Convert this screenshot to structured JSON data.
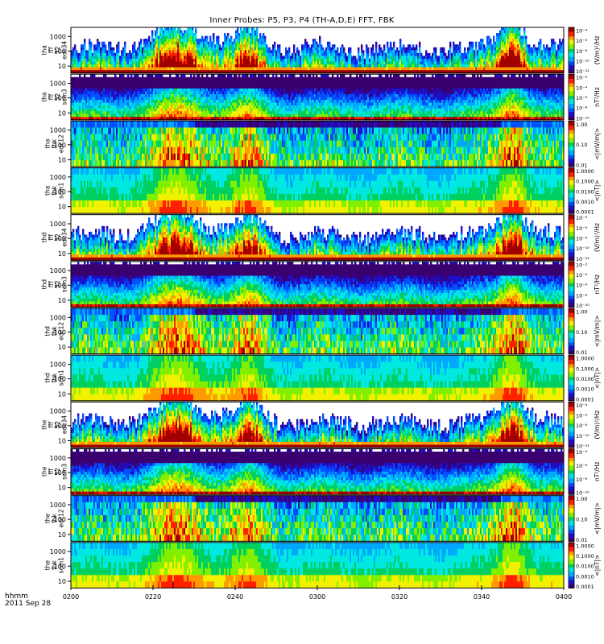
{
  "title": "Inner Probes: P5, P3, P4 (TH-A,D,E) FFT, FBK",
  "footer": {
    "units": "hhmm",
    "date": "2011 Sep 28"
  },
  "chart_data": {
    "type": "heatmap",
    "x_ticks": [
      "0200",
      "0220",
      "0240",
      "0300",
      "0320",
      "0340",
      "0400"
    ],
    "x_range": [
      "02:00",
      "04:00"
    ],
    "y_scale": "log",
    "y_ticks": [
      "10",
      "100",
      "1000"
    ],
    "panels": [
      {
        "probe": "tha",
        "label": [
          "tha",
          "fff",
          "32",
          "edc34"
        ],
        "kind": "fff_e",
        "zlabel": "(V/m)²/Hz",
        "zticks": [
          "10⁻⁴",
          "10⁻⁶",
          "10⁻⁸",
          "10⁻¹⁰",
          "10⁻¹²"
        ]
      },
      {
        "probe": "tha",
        "label": [
          "tha",
          "fff",
          "32",
          "scm3"
        ],
        "kind": "fff_b",
        "zlabel": "nT²/Hz",
        "zticks": [
          "10⁻²",
          "10⁻⁴",
          "10⁻⁶",
          "10⁻⁸",
          "10⁻¹⁰"
        ]
      },
      {
        "probe": "tha",
        "label": [
          "tha",
          "fbk",
          "edc12"
        ],
        "kind": "fbk_e",
        "zlabel": "<|mV/m|>",
        "zticks": [
          "1.00",
          "0.10",
          "0.01"
        ]
      },
      {
        "probe": "tha",
        "label": [
          "tha",
          "fbk",
          "scm1"
        ],
        "kind": "fbk_b",
        "zlabel": "<|nT|>",
        "zticks": [
          "1.0000",
          "0.1000",
          "0.0100",
          "0.0010",
          "0.0001"
        ]
      },
      {
        "probe": "thd",
        "label": [
          "thd",
          "fff",
          "32",
          "edc34"
        ],
        "kind": "fff_e",
        "zlabel": "(V/m)²/Hz",
        "zticks": [
          "10⁻⁴",
          "10⁻⁶",
          "10⁻⁸",
          "10⁻¹⁰",
          "10⁻¹²"
        ]
      },
      {
        "probe": "thd",
        "label": [
          "thd",
          "fff",
          "32",
          "scm3"
        ],
        "kind": "fff_b",
        "zlabel": "nT²/Hz",
        "zticks": [
          "10⁻²",
          "10⁻⁴",
          "10⁻⁶",
          "10⁻⁸",
          "10⁻¹⁰"
        ]
      },
      {
        "probe": "thd",
        "label": [
          "thd",
          "fbk",
          "edc12"
        ],
        "kind": "fbk_e",
        "zlabel": "<|mV/m|>",
        "zticks": [
          "1.00",
          "0.10",
          "0.01"
        ]
      },
      {
        "probe": "thd",
        "label": [
          "thd",
          "fbk",
          "scm1"
        ],
        "kind": "fbk_b",
        "zlabel": "<|nT|>",
        "zticks": [
          "1.0000",
          "0.1000",
          "0.0100",
          "0.0010",
          "0.0001"
        ]
      },
      {
        "probe": "the",
        "label": [
          "the",
          "fff",
          "32",
          "edc34"
        ],
        "kind": "fff_e",
        "zlabel": "(V/m)²/Hz",
        "zticks": [
          "10⁻⁴",
          "10⁻⁶",
          "10⁻⁸",
          "10⁻¹⁰",
          "10⁻¹²"
        ]
      },
      {
        "probe": "the",
        "label": [
          "the",
          "fff",
          "32",
          "scm3"
        ],
        "kind": "fff_b",
        "zlabel": "nT²/Hz",
        "zticks": [
          "10⁻⁴",
          "10⁻⁶",
          "10⁻⁸",
          "10⁻¹⁰"
        ]
      },
      {
        "probe": "the",
        "label": [
          "the",
          "fbk",
          "edc12"
        ],
        "kind": "fbk_e",
        "zlabel": "<|mV/m|>",
        "zticks": [
          "1.00",
          "0.10",
          "0.01"
        ]
      },
      {
        "probe": "the",
        "label": [
          "the",
          "fbk",
          "scm1"
        ],
        "kind": "fbk_b",
        "zlabel": "<|nT|>",
        "zticks": [
          "1.0000",
          "0.1000",
          "0.0100",
          "0.0010",
          "0.0001"
        ]
      }
    ],
    "colors": {
      "colormap": [
        "#3b006f",
        "#1e0fc8",
        "#0050ff",
        "#00a8ff",
        "#00e8e0",
        "#00d060",
        "#80f000",
        "#f0f000",
        "#ff9a00",
        "#ff2000",
        "#a00000"
      ],
      "background": "#ffffff",
      "axis": "#000000"
    },
    "grid": false
  }
}
